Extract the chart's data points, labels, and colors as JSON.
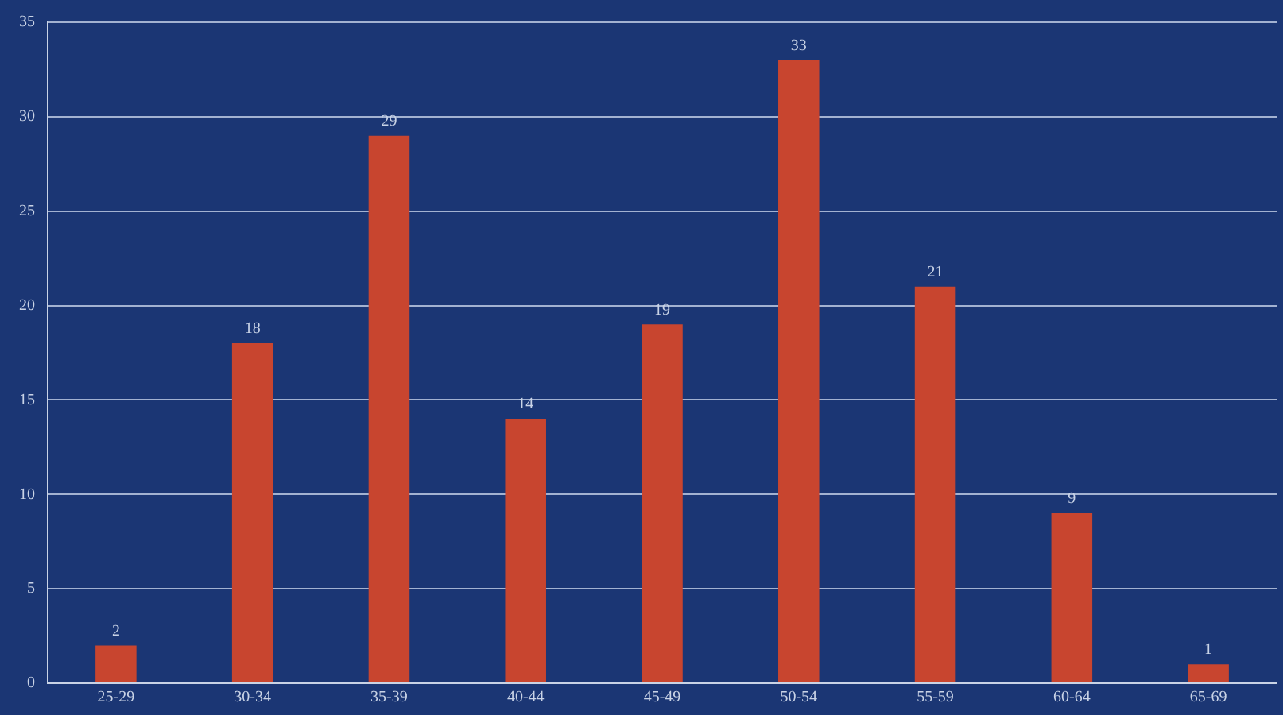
{
  "chart_data": {
    "type": "bar",
    "categories": [
      "25-29",
      "30-34",
      "35-39",
      "40-44",
      "45-49",
      "50-54",
      "55-59",
      "60-64",
      "65-69"
    ],
    "values": [
      2,
      18,
      29,
      14,
      19,
      33,
      21,
      9,
      1
    ],
    "color": "#c8452f",
    "ylim": [
      0,
      35
    ],
    "yticks": [
      0,
      5,
      10,
      15,
      20,
      25,
      30,
      35
    ],
    "grid": "y",
    "legend": false,
    "data_labels": true
  }
}
